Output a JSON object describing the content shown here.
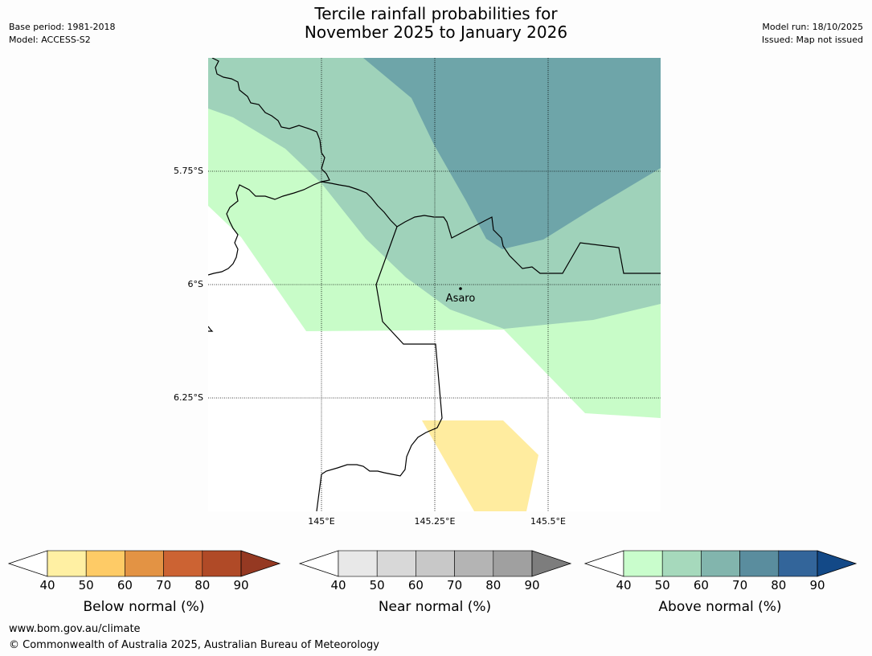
{
  "header": {
    "title_line1": "Tercile rainfall probabilities for",
    "title_line2": "November 2025 to January 2026",
    "base_period": "Base period: 1981-2018",
    "model": "Model: ACCESS-S2",
    "model_run": "Model run: 18/10/2025",
    "issued": "Issued: Map not issued"
  },
  "map": {
    "lat_labels": [
      "5.75°S",
      "6°S",
      "6.25°S"
    ],
    "lon_labels": [
      "145°E",
      "145.25°E",
      "145.5°E"
    ],
    "place_label": "Asaro",
    "colors": {
      "above_40": "#c8fcc8",
      "above_50": "#9fd2ba",
      "above_60": "#6ea5a9",
      "below_40": "#ffec9f",
      "border": "#000000"
    }
  },
  "colorbars": [
    {
      "label": "Below normal (%)",
      "ticks": [
        "40",
        "50",
        "60",
        "70",
        "80",
        "90"
      ],
      "colors": [
        "#fff0a3",
        "#fecb66",
        "#e39344",
        "#cc6333",
        "#b04a27",
        "#953922"
      ]
    },
    {
      "label": "Near normal (%)",
      "ticks": [
        "40",
        "50",
        "60",
        "70",
        "80",
        "90"
      ],
      "colors": [
        "#e8e8e8",
        "#d8d8d8",
        "#c8c8c8",
        "#b4b4b4",
        "#a0a0a0",
        "#7d7d7d"
      ]
    },
    {
      "label": "Above normal (%)",
      "ticks": [
        "40",
        "50",
        "60",
        "70",
        "80",
        "90"
      ],
      "colors": [
        "#c9fdcc",
        "#a6d9bc",
        "#82b5ad",
        "#5a8d9e",
        "#33659a",
        "#134987"
      ]
    }
  ],
  "footer": {
    "url": "www.bom.gov.au/climate",
    "copyright": "© Commonwealth of Australia 2025, Australian Bureau of Meteorology"
  }
}
